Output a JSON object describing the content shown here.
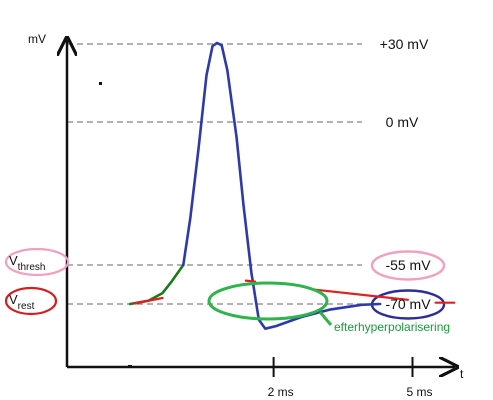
{
  "chart_data": {
    "type": "line",
    "y_axis_label": "mV",
    "x_axis_label": "t",
    "x_ticks": [
      {
        "x": 2,
        "label": "2 ms"
      },
      {
        "x": 5,
        "label": "5 ms"
      }
    ],
    "levels": [
      {
        "value": 30,
        "label": "+30 mV",
        "circled": false
      },
      {
        "value": 0,
        "label": "0 mV",
        "circled": false
      },
      {
        "value": -55,
        "label": "-55 mV",
        "circled": true,
        "circle_color": "#f0a0c0"
      },
      {
        "value": -70,
        "label": "-70 mV",
        "circled": true,
        "circle_color": "#2d2d9a"
      }
    ],
    "left_labels": [
      {
        "name": "V",
        "subscript": "thresh",
        "value": -55,
        "circle_color": "#f0a0c0"
      },
      {
        "name": "V",
        "subscript": "rest",
        "value": -70,
        "circle_color": "#d42020"
      }
    ],
    "annotation": {
      "text": "efterhyperpolarisering",
      "color": "#1a9a3a"
    },
    "series": [
      {
        "color": "#1a7a1a",
        "points": [
          [
            -1.1,
            -70
          ],
          [
            -0.7,
            -68.7
          ],
          [
            -0.4,
            -65.8
          ],
          [
            -0.2,
            -61.3
          ],
          [
            0.05,
            -55
          ]
        ]
      },
      {
        "color": "#2d3aa8",
        "points": [
          [
            0.05,
            -55
          ],
          [
            0.2,
            -37
          ],
          [
            0.38,
            -10
          ],
          [
            0.55,
            18
          ],
          [
            0.68,
            29.2
          ],
          [
            0.78,
            30.4
          ],
          [
            0.88,
            29.5
          ],
          [
            1.0,
            20
          ],
          [
            1.2,
            -6
          ],
          [
            1.35,
            -32
          ],
          [
            1.52,
            -58
          ],
          [
            1.68,
            -76
          ],
          [
            1.82,
            -79.5
          ],
          [
            2.05,
            -78.5
          ],
          [
            2.6,
            -75
          ],
          [
            3.2,
            -72.2
          ],
          [
            3.9,
            -70.3
          ],
          [
            4.3,
            -70
          ]
        ]
      }
    ],
    "accent_strokes": [
      {
        "color": "#e02020",
        "points": [
          [
            -1.0,
            -69.8
          ],
          [
            -0.4,
            -67.7
          ]
        ]
      },
      {
        "color": "#e02020",
        "points": [
          [
            1.4,
            -61
          ],
          [
            1.6,
            -61.4
          ]
        ]
      },
      {
        "color": "#e02020",
        "points": [
          [
            2.9,
            -64.5
          ],
          [
            4.9,
            -68.4
          ]
        ]
      },
      {
        "color": "#e02020",
        "points": [
          [
            5.5,
            -69.5
          ],
          [
            5.9,
            -69.5
          ]
        ]
      }
    ],
    "x_range": [
      -3.5,
      7.5
    ],
    "y_range": [
      -100,
      30
    ],
    "grid": "dashed reference lines at each level"
  },
  "colors": {
    "axis": "#111111",
    "gridline": "#9a9a9a",
    "annotation_ellipse": "#2fb34a"
  }
}
